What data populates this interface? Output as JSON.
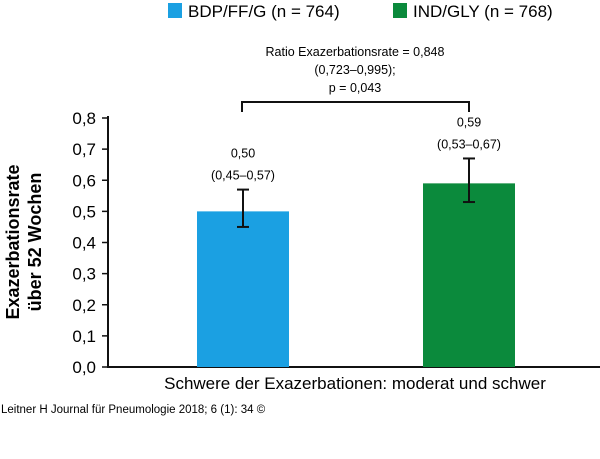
{
  "chart_data": {
    "type": "bar",
    "categories": [
      "BDP/FF/G",
      "IND/GLY"
    ],
    "values": [
      0.5,
      0.59
    ],
    "ci_low": [
      0.45,
      0.53
    ],
    "ci_high": [
      0.57,
      0.67
    ],
    "value_labels": [
      "0,50",
      "0,59"
    ],
    "ci_labels": [
      "(0,45–0,57)",
      "(0,53–0,67)"
    ],
    "colors": [
      "#1ba0e2",
      "#0b8a3c"
    ],
    "legend": [
      "BDP/FF/G (n = 764)",
      "IND/GLY (n = 768)"
    ],
    "ylabel_line1": "Exazerbationsrate",
    "ylabel_line2": "über 52 Wochen",
    "xlabel": "Schwere der Exazerbationen: moderat und schwer",
    "ylim": [
      0,
      0.8
    ],
    "yticks": [
      0,
      0.1,
      0.2,
      0.3,
      0.4,
      0.5,
      0.6,
      0.7,
      0.8
    ],
    "ytick_labels": [
      "0,0",
      "0,1",
      "0,2",
      "0,3",
      "0,4",
      "0,5",
      "0,6",
      "0,7",
      "0,8"
    ],
    "comparison": {
      "line1": "Ratio Exazerbationsrate = 0,848",
      "line2": "(0,723–0,995);",
      "line3": "p = 0,043"
    }
  },
  "credit": "Leitner H Journal für Pneumologie 2018; 6 (1): 34 ©"
}
